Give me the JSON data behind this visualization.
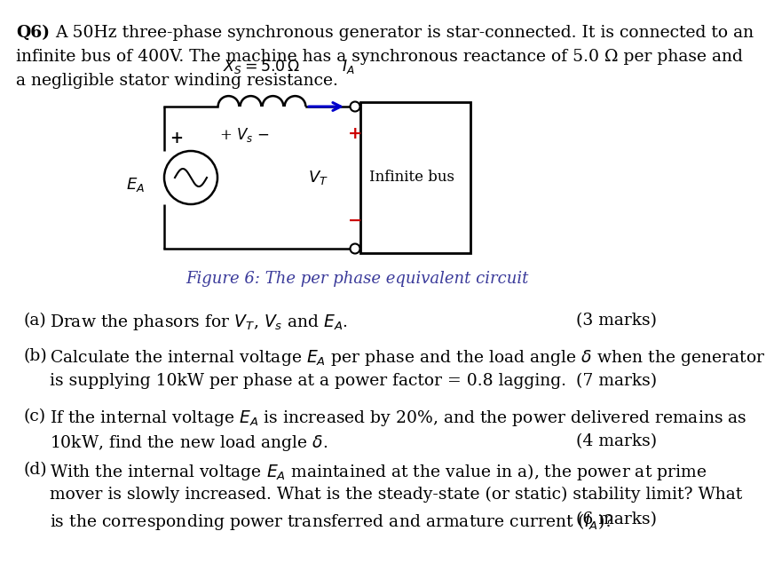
{
  "bg_color": "#ffffff",
  "text_color": "#000000",
  "circuit_color": "#000000",
  "arrow_color": "#0000cc",
  "red_color": "#cc0000",
  "caption_color": "#3a3a9a",
  "fs_main": 13.5,
  "fs_small": 11.5,
  "q6_bold": "Q6)",
  "intro_line1": "  A 50Hz three-phase synchronous generator is star-connected. It is connected to an",
  "intro_line2": "  infinite bus of 400V. The machine has a synchronous reactance of 5.0 Ω per phase and",
  "intro_line3": "  a negligible stator winding resistance.",
  "figure_caption": "Figure 6: The per phase equivalent circuit",
  "xs_label": "$X_S = 5.0\\,\\Omega$",
  "ia_label": "$I_A$",
  "ea_label": "$E_A$",
  "vt_label": "$V_T$",
  "vs_label": "+ $V_s$ −",
  "ib_label": "Infinite bus",
  "part_a_label": "(a)",
  "part_a_text": "  Draw the phasors for $V_T$, $V_s$ and $E_A$.",
  "part_a_marks": "(3 marks)",
  "part_b_label": "(b)",
  "part_b_line1": "  Calculate the internal voltage $E_A$ per phase and the load angle $\\delta$ when the generator",
  "part_b_line2": "  is supplying 10kW per phase at a power factor = 0.8 lagging.",
  "part_b_marks": "(7 marks)",
  "part_c_label": "(c)",
  "part_c_line1": "  If the internal voltage $E_A$ is increased by 20%, and the power delivered remains as",
  "part_c_line2": "  10kW, find the new load angle $\\delta$.",
  "part_c_marks": "(4 marks)",
  "part_d_label": "(d)",
  "part_d_line1": "  With the internal voltage $E_A$ maintained at the value in a), the power at prime",
  "part_d_line2": "  mover is slowly increased. What is the steady-state (or static) stability limit? What",
  "part_d_line3": "  is the corresponding power transferred and armature current ($I_A$)?",
  "part_d_marks": "(6 marks)"
}
